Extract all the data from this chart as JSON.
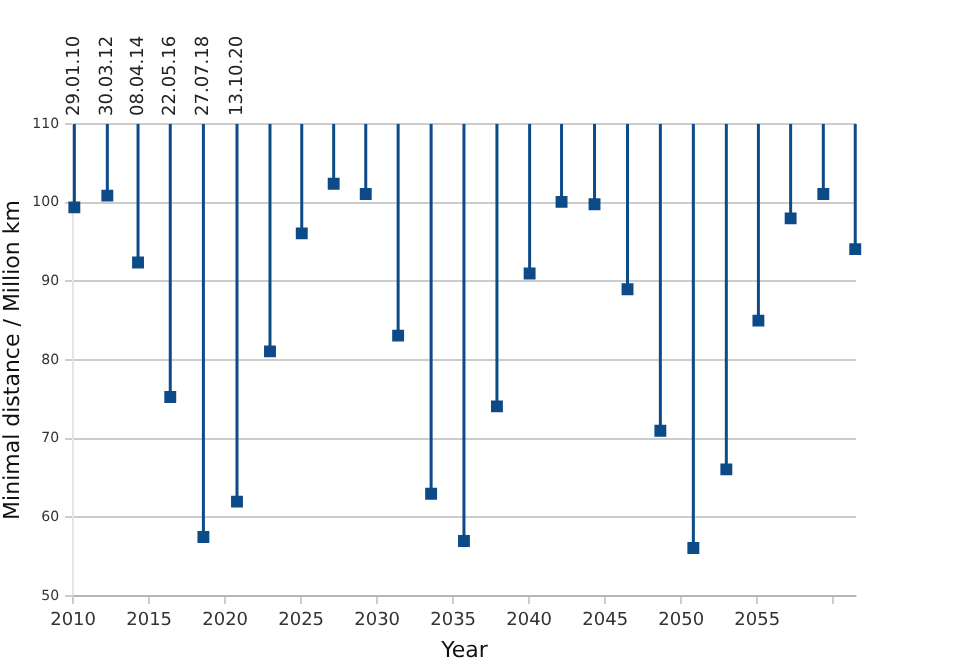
{
  "chart_data": {
    "type": "scatter",
    "xlabel": "Year",
    "ylabel": "Minimal distance / Million km",
    "x": [
      2010.08,
      2012.25,
      2014.27,
      2016.39,
      2018.57,
      2020.78,
      2022.95,
      2025.04,
      2027.14,
      2029.25,
      2031.38,
      2033.55,
      2035.71,
      2037.88,
      2040.03,
      2042.13,
      2044.3,
      2046.47,
      2048.63,
      2050.8,
      2052.97,
      2055.08,
      2057.2,
      2059.35,
      2061.45
    ],
    "values": [
      99.4,
      100.9,
      92.4,
      75.3,
      57.5,
      62,
      81.1,
      96.1,
      102.4,
      101.1,
      83.1,
      63,
      57,
      74.1,
      91,
      100.1,
      99.8,
      89,
      71,
      56.1,
      66.1,
      85,
      98,
      101.1,
      94.1
    ],
    "errors": [
      [
        99.4,
        110
      ],
      [
        100.9,
        110
      ],
      [
        92.4,
        110
      ],
      [
        75.3,
        110
      ],
      [
        57.5,
        110
      ],
      [
        62,
        110
      ],
      [
        81.1,
        110
      ],
      [
        96.1,
        110
      ],
      [
        102.4,
        110
      ],
      [
        101.1,
        110
      ],
      [
        83.1,
        110
      ],
      [
        63,
        110
      ],
      [
        57,
        110
      ],
      [
        74.1,
        110
      ],
      [
        91,
        110
      ],
      [
        100.1,
        110
      ],
      [
        99.8,
        110
      ],
      [
        89,
        110
      ],
      [
        71,
        110
      ],
      [
        56.1,
        110
      ],
      [
        66.1,
        110
      ],
      [
        85,
        110
      ],
      [
        98,
        110
      ],
      [
        101.1,
        110
      ],
      [
        94.1,
        110
      ]
    ],
    "color": "#0d4a88",
    "marker": "square",
    "xlim": [
      2010,
      2061.5
    ],
    "xticks": [
      2010,
      2015,
      2020,
      2025,
      2030,
      2035,
      2040,
      2045,
      2050,
      2055,
      {
        "value": 2060,
        "label": null
      }
    ],
    "ylim": [
      50,
      110
    ],
    "yticks": [
      50,
      60,
      70,
      80,
      90,
      100,
      110
    ],
    "grid": "y",
    "annotations": [
      {
        "text": "29.01.10",
        "x": 2010.08,
        "y": 110
      },
      {
        "text": "30.03.12",
        "x": 2012.25,
        "y": 110
      },
      {
        "text": "08.04.14",
        "x": 2014.27,
        "y": 110
      },
      {
        "text": "22.05.16",
        "x": 2016.39,
        "y": 110
      },
      {
        "text": "27.07.18",
        "x": 2018.57,
        "y": 110
      },
      {
        "text": "13.10.20",
        "x": 2020.78,
        "y": 110
      }
    ]
  }
}
